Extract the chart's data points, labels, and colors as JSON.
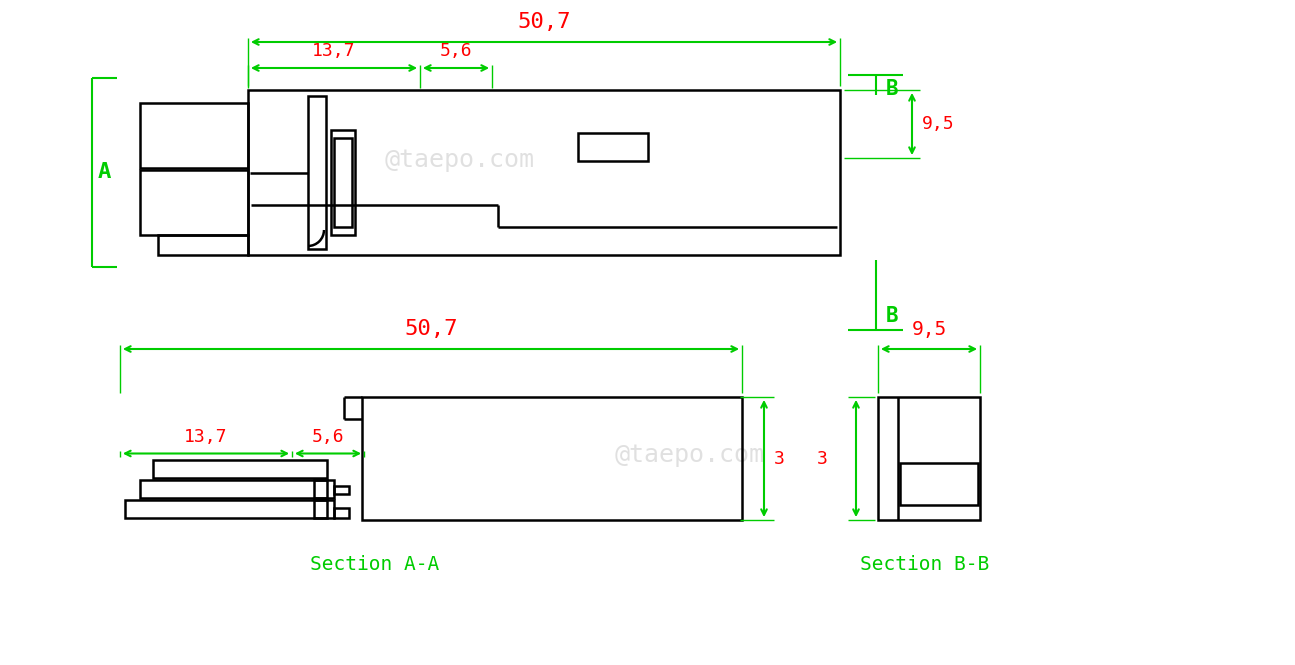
{
  "bg_color": "#ffffff",
  "line_color": "#000000",
  "dim_color": "#ff0000",
  "arrow_color": "#00cc00",
  "section_color": "#00cc00",
  "watermark": "@taepo.com",
  "dims": {
    "507": "50,7",
    "137": "13,7",
    "56": "5,6",
    "95": "9,5",
    "3": "3"
  },
  "labels": {
    "A": "A",
    "B": "B",
    "section_aa": "Section A-A",
    "section_bb": "Section B-B"
  }
}
